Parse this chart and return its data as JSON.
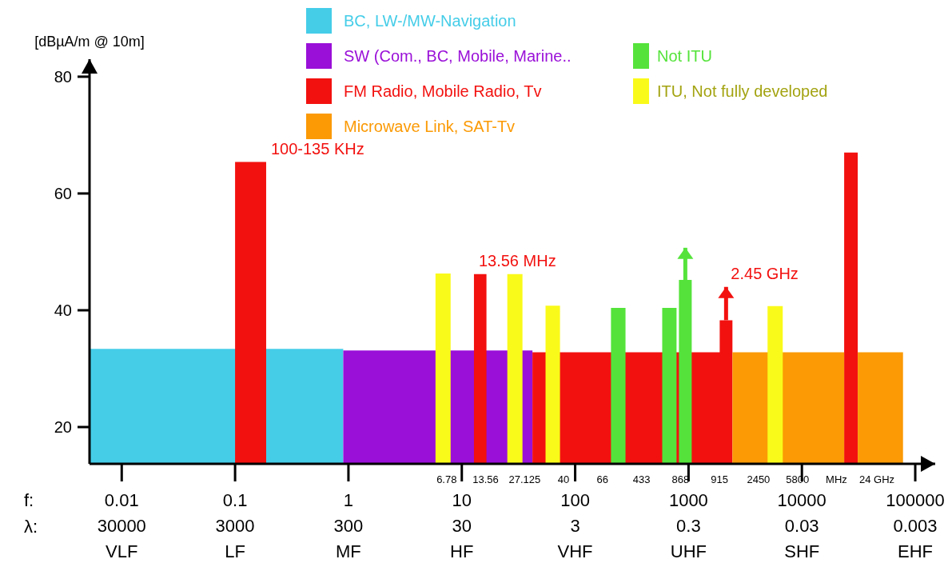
{
  "chart_data": {
    "type": "area",
    "ylabel": "[dBµA/m @ 10m]",
    "legend": "top",
    "xlim": [
      0.0052,
      150000
    ],
    "ylim": [
      13.7,
      83
    ],
    "log": "x",
    "xticks": [
      0.01,
      0.1,
      1,
      10,
      100,
      1000,
      10000,
      100000
    ],
    "yticks": [
      20,
      40,
      60,
      80
    ],
    "series": [
      {
        "name": "BC, LW-/MW-Navigation",
        "color": "#45cde8",
        "x": [
          0.0052,
          0.9
        ],
        "values": [
          33.4,
          33.4
        ]
      },
      {
        "name": "SW (Com., BC, Mobile, Marine..",
        "color": "#9a10d8",
        "x": [
          0.9,
          42
        ],
        "values": [
          33.1,
          33.1
        ]
      },
      {
        "name": "FM Radio, Mobile Radio, Tv",
        "color": "#f2110f",
        "x": [
          0.1,
          0.188,
          1,
          12.8,
          16.5,
          20,
          42,
          1884,
          1884,
          2144,
          2440,
          5000,
          23600,
          31100
        ],
        "values": [
          65.4,
          65.4,
          null,
          46.2,
          46.2,
          null,
          32.8,
          32.8,
          38.3,
          38.3,
          38.3,
          null,
          67,
          67
        ],
        "errors": [
          null,
          null,
          null,
          null,
          null,
          null,
          null,
          null,
          null,
          [
            38.3,
            44
          ],
          null,
          null,
          null,
          null
        ]
      },
      {
        "name": "Microwave Link, SAT-Tv",
        "color": "#fb9a05",
        "x": [
          2440,
          23600,
          27000,
          31100,
          78000
        ],
        "values": [
          32.8,
          32.8,
          null,
          32.8,
          32.8
        ]
      },
      {
        "name": "Not ITU",
        "color": "#55e33b",
        "x": [
          207,
          278,
          400,
          586,
          784,
          800,
          823,
          937,
          1067
        ],
        "values": [
          40.4,
          40.4,
          null,
          40.4,
          40.4,
          null,
          45.2,
          45.2,
          45.2
        ],
        "errors": [
          null,
          null,
          null,
          null,
          null,
          null,
          null,
          [
            45.2,
            50.7
          ],
          null
        ]
      },
      {
        "name": "ITU, Not fully developed",
        "color": "#fafa1a",
        "x": [
          5.86,
          7.97,
          15,
          25.2,
          34.3,
          45,
          54.8,
          73.5,
          1000,
          4980,
          6780
        ],
        "values": [
          46.3,
          46.3,
          null,
          46.2,
          46.2,
          null,
          40.8,
          40.8,
          null,
          40.7,
          40.7
        ]
      }
    ],
    "annotations": [
      "f:",
      "λ:",
      "30000",
      "3000",
      "300",
      "30",
      "3",
      "0.3",
      "0.03",
      "0.003",
      "VLF",
      "LF",
      "MF",
      "HF",
      "VHF",
      "UHF",
      "SHF",
      "EHF",
      {
        "text": "100-135 KHz",
        "x": 0.188,
        "y": 65.4
      },
      {
        "text": "13.56 MHz",
        "x": 12.8,
        "y": 46.2
      },
      {
        "text": "2.45 GHz",
        "x": 2144,
        "y": 44
      }
    ],
    "xlabel": "6.78  13.56  27.125  40  66  433  868  915  2450  5800  MHz  24 GHz"
  }
}
